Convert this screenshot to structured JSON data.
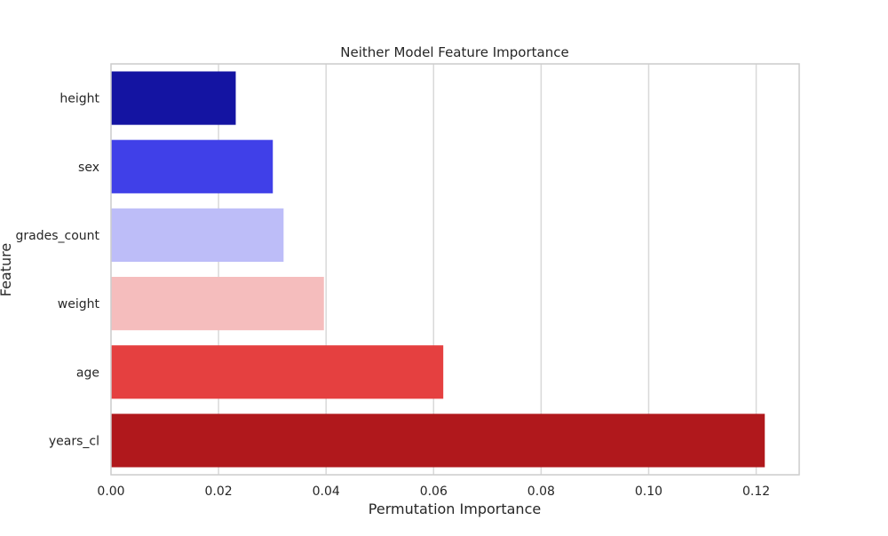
{
  "chart_data": {
    "type": "bar",
    "orientation": "horizontal",
    "title": "Neither Model Feature Importance",
    "xlabel": "Permutation Importance",
    "ylabel": "Feature",
    "categories": [
      "height",
      "sex",
      "grades_count",
      "weight",
      "age",
      "years_cl"
    ],
    "values": [
      0.0232,
      0.0301,
      0.0321,
      0.0396,
      0.0618,
      0.1216
    ],
    "colors": [
      "#1414a2",
      "#4040e8",
      "#bdbdf8",
      "#f5bdbd",
      "#e54040",
      "#b0181c"
    ],
    "xlim": [
      0,
      0.128
    ],
    "xticks": [
      0.0,
      0.02,
      0.04,
      0.06,
      0.08,
      0.1,
      0.12
    ],
    "xtick_labels": [
      "0.00",
      "0.02",
      "0.04",
      "0.06",
      "0.08",
      "0.10",
      "0.12"
    ],
    "grid": "vertical"
  }
}
